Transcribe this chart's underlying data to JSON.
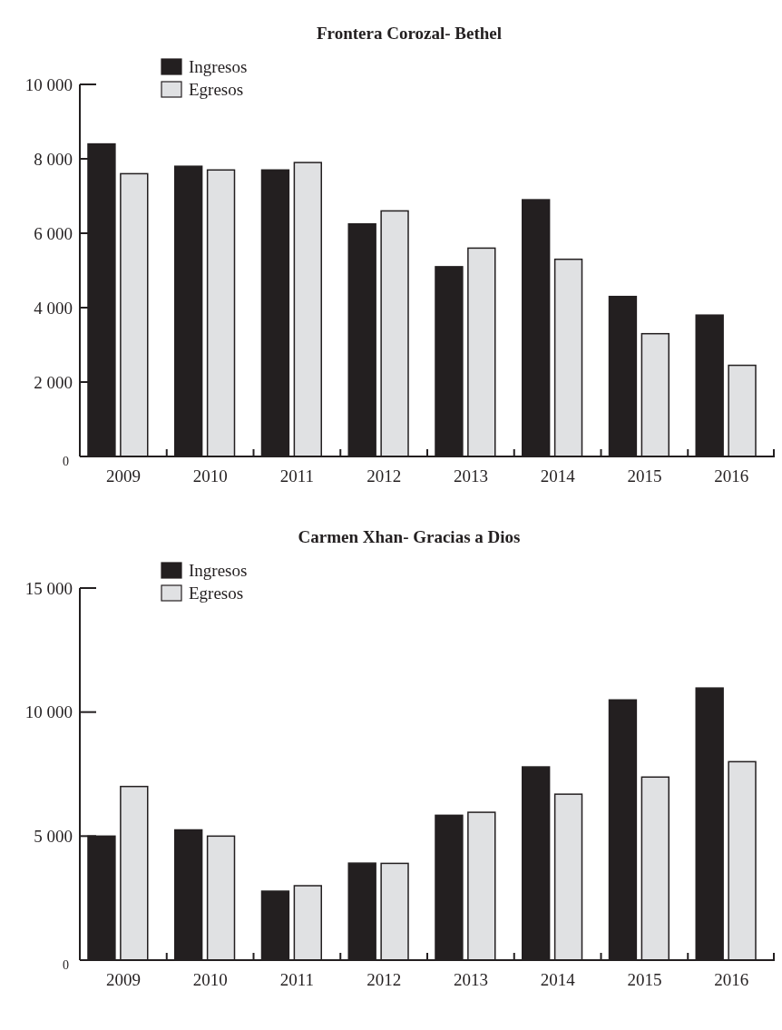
{
  "chart_data": [
    {
      "type": "bar",
      "title": "Frontera Corozal- Bethel",
      "categories": [
        "2009",
        "2010",
        "2011",
        "2012",
        "2013",
        "2014",
        "2015",
        "2016"
      ],
      "series": [
        {
          "name": "Ingresos",
          "color": "#231f20",
          "values": [
            8400,
            7800,
            7700,
            6250,
            5100,
            6900,
            4300,
            3800
          ]
        },
        {
          "name": "Egresos",
          "color": "#e0e1e3",
          "values": [
            7600,
            7700,
            7900,
            6600,
            5600,
            5300,
            3300,
            2450
          ]
        }
      ],
      "ylim": [
        0,
        10000
      ],
      "yticks": [
        {
          "value": 0,
          "label": "0"
        },
        {
          "value": 2000,
          "label": "2 000"
        },
        {
          "value": 4000,
          "label": "4 000"
        },
        {
          "value": 6000,
          "label": "6 000"
        },
        {
          "value": 8000,
          "label": "8 000"
        },
        {
          "value": 10000,
          "label": "10 000"
        }
      ],
      "grid": false,
      "legend": "top left"
    },
    {
      "type": "bar",
      "title": "Carmen Xhan- Gracias a Dios",
      "categories": [
        "2009",
        "2010",
        "2011",
        "2012",
        "2013",
        "2014",
        "2015",
        "2016"
      ],
      "series": [
        {
          "name": "Ingresos",
          "color": "#231f20",
          "values": [
            5000,
            5250,
            2780,
            3910,
            5840,
            7790,
            10490,
            10970
          ]
        },
        {
          "name": "Egresos",
          "color": "#e0e1e3",
          "values": [
            7000,
            5000,
            3000,
            3900,
            5960,
            6690,
            7380,
            8000
          ]
        }
      ],
      "ylim": [
        0,
        15000
      ],
      "yticks": [
        {
          "value": 0,
          "label": "0"
        },
        {
          "value": 5000,
          "label": "5 000"
        },
        {
          "value": 10000,
          "label": "10 000"
        },
        {
          "value": 15000,
          "label": "15 000"
        }
      ],
      "grid": false,
      "legend": "top left"
    }
  ]
}
